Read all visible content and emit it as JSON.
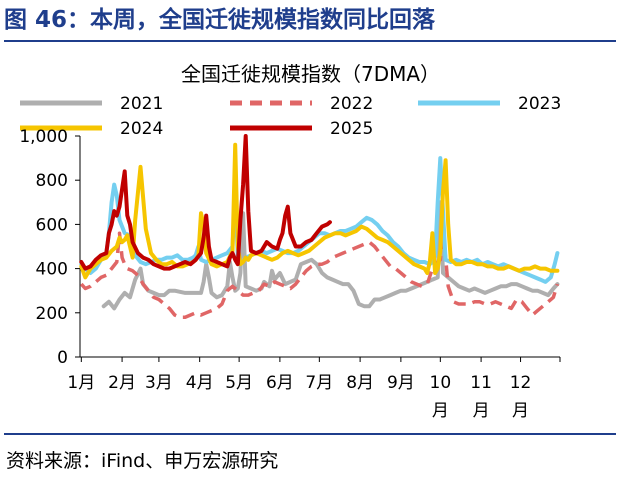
{
  "figure": {
    "header": "图 46：本周，全国迁徙规模指数同比回落",
    "source": "资料来源：iFind、申万宏源研究"
  },
  "chart_data": {
    "type": "line",
    "title": "全国迁徙规模指数（7DMA）",
    "xlabel": "",
    "ylabel": "",
    "ylim": [
      0,
      1000
    ],
    "yticks": [
      "0",
      "200",
      "400",
      "600",
      "800",
      "1,000"
    ],
    "xlim": [
      0,
      365
    ],
    "x_unit": "day of year",
    "months": [
      {
        "line1": "1月",
        "line2": "",
        "x": 1
      },
      {
        "line1": "2月",
        "line2": "",
        "x": 32
      },
      {
        "line1": "3月",
        "line2": "",
        "x": 60
      },
      {
        "line1": "4月",
        "line2": "",
        "x": 91
      },
      {
        "line1": "5月",
        "line2": "",
        "x": 121
      },
      {
        "line1": "6月",
        "line2": "",
        "x": 152
      },
      {
        "line1": "7月",
        "line2": "",
        "x": 182
      },
      {
        "line1": "8月",
        "line2": "",
        "x": 213
      },
      {
        "line1": "9月",
        "line2": "",
        "x": 244
      },
      {
        "line1": "10",
        "line2": "月",
        "x": 274
      },
      {
        "line1": "11",
        "line2": "月",
        "x": 305
      },
      {
        "line1": "12",
        "line2": "月",
        "x": 335
      }
    ],
    "grid": false,
    "legend_position": "top",
    "series": [
      {
        "name": "2021",
        "color": "#AFAFAF",
        "dash": false,
        "width": 4,
        "x": [
          18,
          22,
          26,
          30,
          34,
          38,
          42,
          46,
          48,
          52,
          56,
          60,
          64,
          68,
          72,
          76,
          80,
          84,
          88,
          92,
          94,
          96,
          98,
          100,
          104,
          108,
          112,
          114,
          116,
          118,
          120,
          122,
          124,
          126,
          130,
          134,
          138,
          140,
          144,
          146,
          148,
          152,
          156,
          160,
          164,
          168,
          172,
          176,
          180,
          184,
          188,
          192,
          196,
          200,
          204,
          208,
          212,
          216,
          220,
          224,
          228,
          232,
          236,
          240,
          244,
          248,
          252,
          256,
          260,
          264,
          268,
          272,
          274,
          276,
          280,
          284,
          288,
          292,
          296,
          300,
          304,
          308,
          312,
          316,
          320,
          324,
          328,
          332,
          336,
          340,
          344,
          348,
          352,
          356,
          360,
          363
        ],
        "y": [
          230,
          250,
          220,
          260,
          290,
          270,
          350,
          400,
          330,
          300,
          290,
          280,
          280,
          300,
          300,
          295,
          290,
          290,
          290,
          290,
          340,
          420,
          360,
          290,
          270,
          280,
          320,
          430,
          360,
          300,
          310,
          380,
          650,
          320,
          310,
          300,
          310,
          340,
          320,
          390,
          350,
          380,
          330,
          340,
          350,
          420,
          430,
          440,
          420,
          380,
          360,
          350,
          340,
          330,
          330,
          300,
          240,
          230,
          230,
          260,
          260,
          270,
          280,
          290,
          300,
          300,
          310,
          320,
          330,
          340,
          350,
          360,
          700,
          380,
          360,
          340,
          320,
          310,
          300,
          310,
          300,
          290,
          300,
          310,
          320,
          320,
          330,
          330,
          320,
          310,
          300,
          300,
          290,
          280,
          310,
          330
        ]
      },
      {
        "name": "2022",
        "color": "#E06666",
        "dash": true,
        "width": 3.5,
        "x": [
          1,
          4,
          8,
          12,
          16,
          20,
          24,
          28,
          30,
          32,
          34,
          36,
          40,
          44,
          48,
          52,
          56,
          60,
          64,
          68,
          72,
          76,
          80,
          84,
          88,
          92,
          96,
          100,
          104,
          108,
          112,
          116,
          120,
          124,
          128,
          132,
          136,
          140,
          144,
          148,
          152,
          156,
          160,
          164,
          168,
          172,
          176,
          180,
          184,
          188,
          192,
          196,
          200,
          204,
          208,
          212,
          216,
          220,
          224,
          228,
          232,
          236,
          240,
          244,
          248,
          252,
          256,
          260,
          264,
          268,
          272,
          274,
          276,
          280,
          284,
          288,
          292,
          296,
          300,
          304,
          308,
          312,
          316,
          320,
          324,
          328,
          332,
          336,
          340,
          344,
          348,
          352,
          356,
          360,
          363
        ],
        "y": [
          330,
          310,
          320,
          340,
          360,
          370,
          400,
          430,
          560,
          450,
          420,
          400,
          390,
          370,
          330,
          300,
          270,
          260,
          240,
          220,
          190,
          180,
          180,
          190,
          200,
          190,
          200,
          210,
          220,
          240,
          300,
          320,
          300,
          280,
          280,
          290,
          300,
          330,
          320,
          340,
          330,
          320,
          310,
          330,
          360,
          390,
          410,
          420,
          420,
          430,
          450,
          460,
          470,
          480,
          490,
          500,
          510,
          520,
          500,
          470,
          440,
          410,
          400,
          380,
          360,
          340,
          330,
          320,
          330,
          400,
          430,
          440,
          580,
          320,
          250,
          240,
          240,
          240,
          250,
          250,
          240,
          240,
          250,
          240,
          230,
          220,
          260,
          250,
          220,
          190,
          210,
          230,
          250,
          270,
          330
        ]
      },
      {
        "name": "2023",
        "color": "#74CFF0",
        "dash": false,
        "width": 4,
        "x": [
          1,
          4,
          8,
          12,
          16,
          20,
          22,
          24,
          26,
          28,
          30,
          34,
          38,
          42,
          46,
          50,
          54,
          58,
          62,
          66,
          70,
          74,
          78,
          82,
          86,
          88,
          90,
          92,
          96,
          100,
          104,
          108,
          112,
          116,
          118,
          120,
          122,
          126,
          130,
          134,
          138,
          142,
          146,
          150,
          154,
          158,
          162,
          166,
          170,
          174,
          178,
          182,
          186,
          190,
          194,
          198,
          202,
          206,
          210,
          214,
          218,
          222,
          226,
          230,
          234,
          238,
          242,
          246,
          250,
          254,
          258,
          262,
          266,
          268,
          270,
          272,
          274,
          276,
          278,
          282,
          286,
          290,
          294,
          298,
          302,
          306,
          310,
          314,
          318,
          322,
          326,
          330,
          334,
          338,
          342,
          346,
          350,
          354,
          358,
          361,
          363
        ],
        "y": [
          420,
          400,
          380,
          400,
          440,
          470,
          560,
          700,
          780,
          730,
          620,
          560,
          550,
          460,
          430,
          420,
          430,
          440,
          440,
          450,
          450,
          460,
          440,
          440,
          450,
          460,
          500,
          440,
          430,
          440,
          450,
          460,
          470,
          500,
          740,
          460,
          420,
          450,
          460,
          470,
          480,
          470,
          480,
          490,
          480,
          470,
          470,
          480,
          500,
          520,
          540,
          560,
          560,
          550,
          560,
          570,
          570,
          580,
          590,
          610,
          630,
          620,
          600,
          570,
          550,
          520,
          500,
          470,
          450,
          440,
          430,
          430,
          420,
          430,
          460,
          700,
          900,
          660,
          440,
          430,
          440,
          430,
          440,
          430,
          440,
          420,
          430,
          420,
          410,
          420,
          410,
          400,
          390,
          380,
          370,
          360,
          350,
          340,
          360,
          420,
          470
        ]
      },
      {
        "name": "2024",
        "color": "#F6C500",
        "dash": false,
        "width": 4,
        "x": [
          1,
          4,
          8,
          12,
          16,
          20,
          24,
          28,
          30,
          32,
          34,
          36,
          38,
          40,
          42,
          46,
          50,
          54,
          58,
          62,
          66,
          70,
          74,
          78,
          82,
          86,
          88,
          90,
          92,
          94,
          96,
          100,
          104,
          108,
          112,
          116,
          118,
          120,
          122,
          124,
          126,
          128,
          130,
          134,
          138,
          142,
          146,
          150,
          154,
          158,
          162,
          166,
          170,
          174,
          178,
          182,
          186,
          190,
          194,
          198,
          202,
          206,
          210,
          214,
          218,
          222,
          226,
          230,
          234,
          238,
          242,
          246,
          250,
          254,
          258,
          262,
          264,
          266,
          268,
          270,
          272,
          274,
          276,
          278,
          280,
          282,
          286,
          290,
          294,
          298,
          302,
          306,
          310,
          314,
          318,
          322,
          326,
          330,
          334,
          338,
          342,
          346,
          350,
          354,
          358,
          361,
          363
        ],
        "y": [
          410,
          360,
          400,
          420,
          440,
          450,
          480,
          500,
          540,
          520,
          530,
          550,
          500,
          450,
          620,
          860,
          580,
          470,
          440,
          420,
          420,
          430,
          410,
          410,
          420,
          430,
          440,
          460,
          650,
          600,
          470,
          420,
          410,
          420,
          430,
          480,
          960,
          500,
          420,
          430,
          450,
          440,
          460,
          470,
          460,
          450,
          440,
          450,
          470,
          480,
          470,
          460,
          470,
          480,
          500,
          520,
          540,
          550,
          560,
          560,
          550,
          560,
          570,
          590,
          580,
          560,
          540,
          530,
          520,
          500,
          480,
          460,
          440,
          420,
          410,
          400,
          380,
          430,
          560,
          380,
          400,
          480,
          750,
          890,
          600,
          440,
          420,
          420,
          430,
          430,
          420,
          420,
          410,
          410,
          400,
          400,
          410,
          400,
          390,
          400,
          400,
          410,
          400,
          400,
          390,
          390,
          390
        ]
      },
      {
        "name": "2025",
        "color": "#C00000",
        "dash": false,
        "width": 4,
        "x": [
          1,
          4,
          8,
          12,
          16,
          20,
          22,
          24,
          26,
          28,
          30,
          32,
          34,
          36,
          38,
          40,
          44,
          48,
          52,
          56,
          60,
          64,
          68,
          72,
          76,
          80,
          84,
          88,
          92,
          94,
          96,
          98,
          100,
          104,
          108,
          112,
          114,
          116,
          118,
          120,
          122,
          124,
          126,
          128,
          130,
          134,
          138,
          142,
          146,
          150,
          152,
          154,
          156,
          158,
          160,
          164,
          168,
          172,
          176,
          180,
          184,
          188,
          190
        ],
        "y": [
          430,
          400,
          410,
          440,
          460,
          470,
          560,
          600,
          660,
          640,
          680,
          760,
          840,
          640,
          600,
          520,
          470,
          450,
          440,
          420,
          410,
          400,
          400,
          410,
          420,
          430,
          420,
          440,
          470,
          540,
          640,
          500,
          440,
          430,
          420,
          410,
          450,
          470,
          440,
          420,
          620,
          780,
          1000,
          660,
          480,
          470,
          480,
          520,
          500,
          490,
          530,
          560,
          640,
          680,
          560,
          500,
          500,
          520,
          530,
          560,
          590,
          600,
          610
        ]
      }
    ]
  }
}
